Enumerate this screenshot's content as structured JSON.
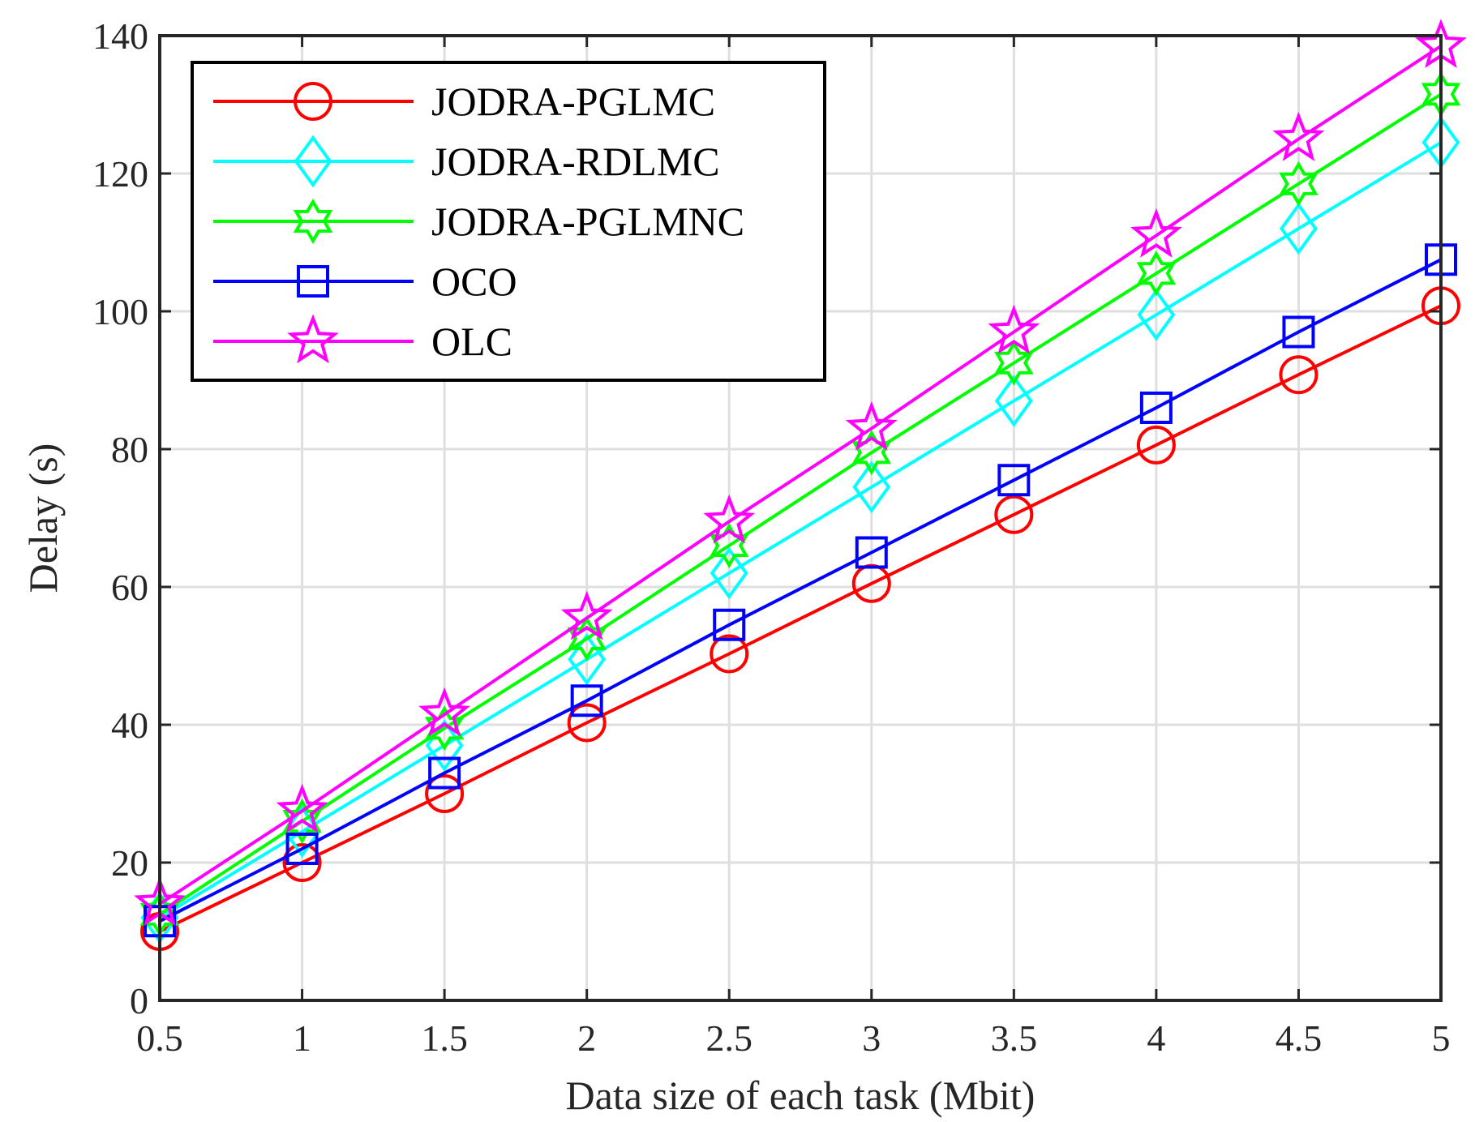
{
  "chart_data": {
    "type": "line",
    "title": "",
    "xlabel": "Data size of each task (Mbit)",
    "ylabel": "Delay (s)",
    "x": [
      0.5,
      1,
      1.5,
      2,
      2.5,
      3,
      3.5,
      4,
      4.5,
      5
    ],
    "x_tick_labels": [
      "0.5",
      "1",
      "1.5",
      "2",
      "2.5",
      "3",
      "3.5",
      "4",
      "4.5",
      "5"
    ],
    "xlim": [
      0.5,
      5
    ],
    "ylim": [
      0,
      140
    ],
    "y_ticks": [
      0,
      20,
      40,
      60,
      80,
      100,
      120,
      140
    ],
    "y_tick_labels": [
      "0",
      "20",
      "40",
      "60",
      "80",
      "100",
      "120",
      "140"
    ],
    "grid": true,
    "legend_position": "top-left",
    "series": [
      {
        "name": "JODRA-PGLMC",
        "color": "#ff0000",
        "marker": "circle",
        "values": [
          10,
          20,
          30,
          40.3,
          50.3,
          60.5,
          70.5,
          80.6,
          90.8,
          100.8
        ]
      },
      {
        "name": "JODRA-RDLMC",
        "color": "#00ffff",
        "marker": "diamond",
        "values": [
          12,
          24.5,
          37,
          49.5,
          62,
          74.5,
          87,
          99.5,
          112,
          124.5
        ]
      },
      {
        "name": "JODRA-PGLMNC",
        "color": "#00ff00",
        "marker": "hexagram",
        "values": [
          12.5,
          26,
          39.5,
          52.5,
          66,
          79.5,
          92.5,
          105.5,
          118.5,
          131.5
        ]
      },
      {
        "name": "OCO",
        "color": "#0000ff",
        "marker": "square",
        "values": [
          11.5,
          22,
          33,
          43.5,
          54.5,
          65,
          75.5,
          86,
          97,
          107.5
        ]
      },
      {
        "name": "OLC",
        "color": "#ff00ff",
        "marker": "pentagram",
        "values": [
          14,
          27.5,
          41.5,
          55.5,
          69.5,
          83,
          97,
          111,
          125,
          138.5
        ]
      }
    ]
  }
}
